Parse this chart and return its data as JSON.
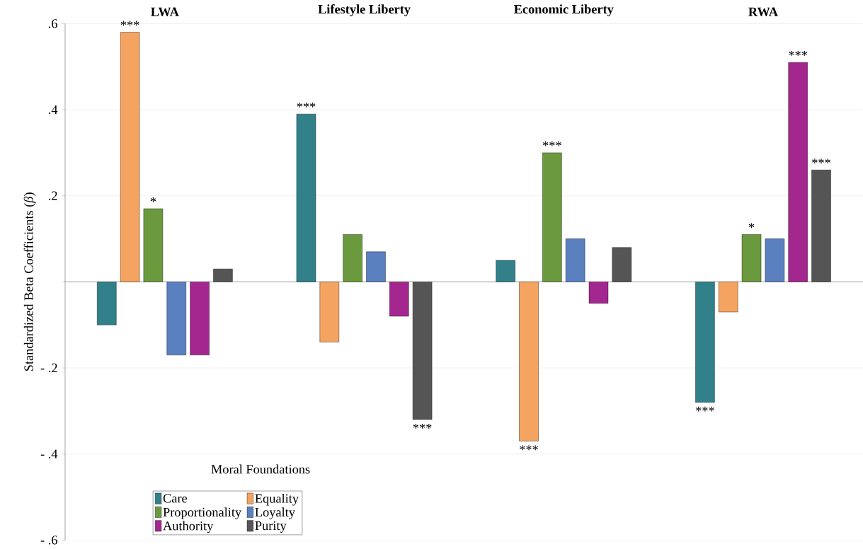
{
  "chart_data": {
    "type": "bar",
    "ylabel": "Standardized Beta Coefficients (*β*)",
    "legend_title": "Moral Foundations",
    "categories": [
      "LWA",
      "Lifestyle Liberty",
      "Economic Liberty",
      "RWA"
    ],
    "series": [
      {
        "name": "Care",
        "color": "#31808a",
        "values": [
          -0.1,
          0.39,
          0.05,
          -0.28
        ],
        "value_labels": [
          null,
          "***",
          null,
          "***"
        ]
      },
      {
        "name": "Equality",
        "color": "#f4a460",
        "values": [
          0.58,
          -0.14,
          -0.37,
          -0.07
        ],
        "value_labels": [
          "***",
          null,
          "***",
          null
        ]
      },
      {
        "name": "Proportionality",
        "color": "#6b9a3e",
        "values": [
          0.17,
          0.11,
          0.3,
          0.11
        ],
        "value_labels": [
          "*",
          null,
          "***",
          "*"
        ]
      },
      {
        "name": "Loyalty",
        "color": "#5b80c0",
        "values": [
          -0.17,
          0.07,
          0.1,
          0.1
        ]
      },
      {
        "name": "Authority",
        "color": "#a3278f",
        "values": [
          -0.17,
          -0.08,
          -0.05,
          0.51
        ],
        "value_labels": [
          null,
          null,
          null,
          "***"
        ]
      },
      {
        "name": "Purity",
        "color": "#555555",
        "values": [
          0.03,
          -0.32,
          0.08,
          0.26
        ],
        "value_labels": [
          null,
          "***",
          null,
          "***"
        ]
      }
    ],
    "ylim": [
      -0.6,
      0.6
    ],
    "yticks": [
      {
        "value": -0.6,
        "label": "- .6"
      },
      {
        "value": -0.4,
        "label": "- .4"
      },
      {
        "value": -0.2,
        "label": "- .2"
      },
      {
        "value": 0,
        "label": null
      },
      {
        "value": 0.2,
        "label": ".2"
      },
      {
        "value": 0.4,
        "label": ".4"
      },
      {
        "value": 0.6,
        "label": ".6"
      }
    ],
    "grid": "y",
    "legend": "bottom left"
  }
}
